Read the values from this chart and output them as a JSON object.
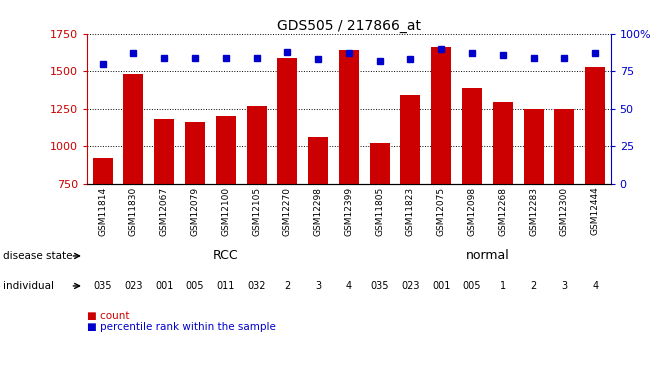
{
  "title": "GDS505 / 217866_at",
  "samples": [
    "GSM11814",
    "GSM11830",
    "GSM12067",
    "GSM12079",
    "GSM12100",
    "GSM12105",
    "GSM12270",
    "GSM12298",
    "GSM12399",
    "GSM11805",
    "GSM11823",
    "GSM12075",
    "GSM12098",
    "GSM12268",
    "GSM12283",
    "GSM12300",
    "GSM12444"
  ],
  "counts": [
    920,
    1480,
    1185,
    1165,
    1205,
    1270,
    1590,
    1065,
    1640,
    1025,
    1340,
    1660,
    1390,
    1295,
    1250,
    1250,
    1530
  ],
  "percentiles": [
    80,
    87,
    84,
    84,
    84,
    84,
    88,
    83,
    87,
    82,
    83,
    90,
    87,
    86,
    84,
    84,
    87
  ],
  "bar_color": "#cc0000",
  "dot_color": "#0000cc",
  "ylim_left": [
    750,
    1750
  ],
  "ylim_right": [
    0,
    100
  ],
  "yticks_left": [
    750,
    1000,
    1250,
    1500,
    1750
  ],
  "yticks_right": [
    0,
    25,
    50,
    75,
    100
  ],
  "ytick_labels_right": [
    "0",
    "25",
    "50",
    "75",
    "100%"
  ],
  "disease_state_ranges": [
    9,
    8
  ],
  "individual_labels": [
    "035",
    "023",
    "001",
    "005",
    "011",
    "032",
    "2",
    "3",
    "4",
    "035",
    "023",
    "001",
    "005",
    "1",
    "2",
    "3",
    "4"
  ],
  "rcc_color": "#ccffcc",
  "normal_color": "#66ff66",
  "individual_color_rcc": "#ee88ee",
  "individual_color_normal": "#ee88ee",
  "label_bg_color": "#dddddd",
  "background_color": "#ffffff"
}
